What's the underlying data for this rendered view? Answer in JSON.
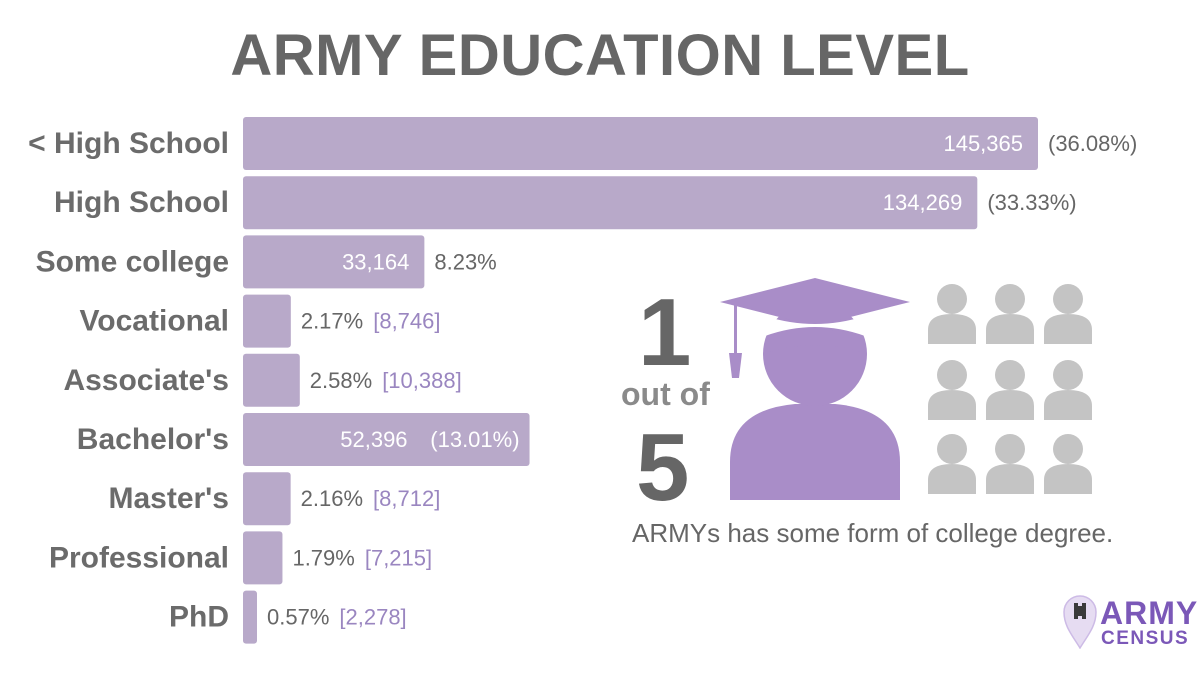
{
  "header": {
    "title": "ARMY EDUCATION LEVEL"
  },
  "chart_data": {
    "type": "bar",
    "orientation": "horizontal",
    "categories": [
      "< High School",
      "High School",
      "Some college",
      "Vocational",
      "Associate's",
      "Bachelor's",
      "Master's",
      "Professional",
      "PhD"
    ],
    "values": [
      145365,
      134269,
      33164,
      8746,
      10388,
      52396,
      8712,
      7215,
      2278
    ],
    "value_labels": [
      "145,365",
      "134,269",
      "33,164",
      "8,746",
      "10,388",
      "52,396",
      "8,712",
      "7,215",
      "2,278"
    ],
    "percent_labels": [
      "(36.08%)",
      "(33.33%)",
      "8.23%",
      "2.17%",
      "2.58%",
      "(13.01%)",
      "2.16%",
      "1.79%",
      "0.57%"
    ],
    "bracket_labels": [
      "",
      "",
      "",
      "[8,746]",
      "[10,388]",
      "",
      "[8,712]",
      "[7,215]",
      "[2,278]"
    ],
    "colors": {
      "bar": "#b8a9c9",
      "label": "#6b6b6b",
      "accent": "#a68bc4",
      "bracket": "#9a86c0"
    }
  },
  "stat": {
    "numerator": "1",
    "middle": "out of",
    "denominator": "5",
    "caption": "ARMYs has some form of college degree.",
    "icons": {
      "graduate": "graduate-icon",
      "person": "person-icon"
    },
    "graduate_color": "#a98dc8",
    "person_color": "#c4c4c4"
  },
  "logo": {
    "line1": "ARMY",
    "line2": "CENSUS",
    "icon": "map-pin-icon"
  }
}
